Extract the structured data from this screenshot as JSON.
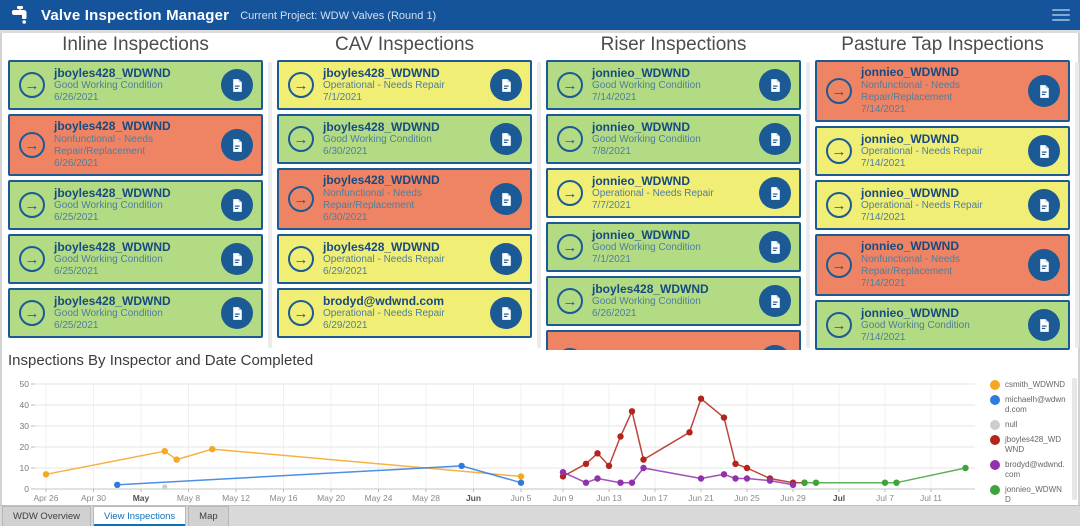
{
  "header": {
    "title": "Valve Inspection Manager",
    "subtitle": "Current Project: WDW Valves (Round 1)"
  },
  "icons": {
    "header_app_icon": "faucet",
    "header_menu_icon": "hamburger",
    "card_leading_icon": "arrow-right-circle",
    "card_leading_glyph": "→",
    "card_action_icon": "document"
  },
  "status_colors": {
    "good": "#B2DB84",
    "operational": "#F0EE74",
    "nonfunctional": "#EF8465"
  },
  "columns": [
    {
      "title": "Inline Inspections",
      "cards": [
        {
          "name": "jboyles428_WDWND",
          "status": "Good Working Condition",
          "date": "6/26/2021",
          "condition": "good"
        },
        {
          "name": "jboyles428_WDWND",
          "status": "Nonfunctional - Needs Repair/Replacement",
          "date": "6/26/2021",
          "condition": "nonfunctional",
          "tall": true
        },
        {
          "name": "jboyles428_WDWND",
          "status": "Good Working Condition",
          "date": "6/25/2021",
          "condition": "good"
        },
        {
          "name": "jboyles428_WDWND",
          "status": "Good Working Condition",
          "date": "6/25/2021",
          "condition": "good"
        },
        {
          "name": "jboyles428_WDWND",
          "status": "Good Working Condition",
          "date": "6/25/2021",
          "condition": "good"
        }
      ]
    },
    {
      "title": "CAV Inspections",
      "cards": [
        {
          "name": "jboyles428_WDWND",
          "status": "Operational - Needs Repair",
          "date": "7/1/2021",
          "condition": "operational"
        },
        {
          "name": "jboyles428_WDWND",
          "status": "Good Working Condition",
          "date": "6/30/2021",
          "condition": "good"
        },
        {
          "name": "jboyles428_WDWND",
          "status": "Nonfunctional - Needs Repair/Replacement",
          "date": "6/30/2021",
          "condition": "nonfunctional",
          "tall": true
        },
        {
          "name": "jboyles428_WDWND",
          "status": "Operational - Needs Repair",
          "date": "6/29/2021",
          "condition": "operational"
        },
        {
          "name": "brodyd@wdwnd.com",
          "status": "Operational - Needs Repair",
          "date": "6/29/2021",
          "condition": "operational"
        }
      ]
    },
    {
      "title": "Riser Inspections",
      "cards": [
        {
          "name": "jonnieo_WDWND",
          "status": "Good Working Condition",
          "date": "7/14/2021",
          "condition": "good"
        },
        {
          "name": "jonnieo_WDWND",
          "status": "Good Working Condition",
          "date": "7/8/2021",
          "condition": "good"
        },
        {
          "name": "jonnieo_WDWND",
          "status": "Operational - Needs Repair",
          "date": "7/7/2021",
          "condition": "operational"
        },
        {
          "name": "jonnieo_WDWND",
          "status": "Good Working Condition",
          "date": "7/1/2021",
          "condition": "good"
        },
        {
          "name": "jboyles428_WDWND",
          "status": "Good Working Condition",
          "date": "6/26/2021",
          "condition": "good"
        },
        {
          "name": "",
          "status": "",
          "date": "",
          "condition": "nonfunctional",
          "tall": true
        }
      ]
    },
    {
      "title": "Pasture Tap Inspections",
      "cards": [
        {
          "name": "jonnieo_WDWND",
          "status": "Nonfunctional - Needs Repair/Replacement",
          "date": "7/14/2021",
          "condition": "nonfunctional",
          "tall": true
        },
        {
          "name": "jonnieo_WDWND",
          "status": "Operational - Needs Repair",
          "date": "7/14/2021",
          "condition": "operational"
        },
        {
          "name": "jonnieo_WDWND",
          "status": "Operational - Needs Repair",
          "date": "7/14/2021",
          "condition": "operational"
        },
        {
          "name": "jonnieo_WDWND",
          "status": "Nonfunctional - Needs Repair/Replacement",
          "date": "7/14/2021",
          "condition": "nonfunctional",
          "tall": true
        },
        {
          "name": "jonnieo_WDWND",
          "status": "Good Working Condition",
          "date": "7/14/2021",
          "condition": "good"
        }
      ]
    }
  ],
  "chart_data": {
    "type": "line",
    "title": "Inspections By Inspector and Date Completed",
    "xlabel": "",
    "ylabel": "",
    "ylim": [
      0,
      50
    ],
    "yticks": [
      0,
      10,
      20,
      30,
      40,
      50
    ],
    "grid": true,
    "legend_position": "right",
    "x_unit": "days since Apr 26 2021",
    "segments": [
      {
        "day_range": [
          0,
          40
        ],
        "ticks": [
          {
            "day": 0,
            "label": "Apr 26"
          },
          {
            "day": 4,
            "label": "Apr 30"
          },
          {
            "day": 8,
            "label": "May",
            "bold": true
          },
          {
            "day": 12,
            "label": "May 8"
          },
          {
            "day": 16,
            "label": "May 12"
          },
          {
            "day": 20,
            "label": "May 16"
          },
          {
            "day": 24,
            "label": "May 20"
          },
          {
            "day": 28,
            "label": "May 24"
          },
          {
            "day": 32,
            "label": "May 28"
          },
          {
            "day": 36,
            "label": "Jun",
            "bold": true
          },
          {
            "day": 40,
            "label": "Jun 5"
          }
        ]
      },
      {
        "day_range": [
          44,
          80
        ],
        "ticks": [
          {
            "day": 44,
            "label": "Jun 9"
          },
          {
            "day": 48,
            "label": "Jun 13"
          },
          {
            "day": 52,
            "label": "Jun 17"
          },
          {
            "day": 56,
            "label": "Jun 21"
          },
          {
            "day": 60,
            "label": "Jun 25"
          },
          {
            "day": 64,
            "label": "Jun 29"
          },
          {
            "day": 68,
            "label": "Jul",
            "bold": true
          },
          {
            "day": 72,
            "label": "Jul 7"
          },
          {
            "day": 76,
            "label": "Jul 11"
          }
        ]
      }
    ],
    "series": [
      {
        "name": "csmith_WDWND",
        "color": "#F5A623",
        "points": [
          [
            0,
            7
          ],
          [
            10,
            18
          ],
          [
            11,
            14
          ],
          [
            14,
            19
          ],
          [
            40,
            6
          ]
        ]
      },
      {
        "name": "michaelh@wdwnd.com",
        "color": "#2E7BE0",
        "points": [
          [
            6,
            2
          ],
          [
            35,
            11
          ],
          [
            40,
            3
          ]
        ]
      },
      {
        "name": "null",
        "color": "#CDCDCD",
        "points": [
          [
            10,
            1
          ]
        ]
      },
      {
        "name": "jboyles428_WDWND",
        "color": "#B1251A",
        "points": [
          [
            44,
            6
          ],
          [
            46,
            12
          ],
          [
            47,
            17
          ],
          [
            48,
            11
          ],
          [
            49,
            25
          ],
          [
            50,
            37
          ],
          [
            51,
            14
          ],
          [
            55,
            27
          ],
          [
            56,
            43
          ],
          [
            58,
            34
          ],
          [
            59,
            12
          ],
          [
            60,
            10
          ],
          [
            62,
            5
          ],
          [
            64,
            3
          ],
          [
            65,
            3
          ]
        ]
      },
      {
        "name": "brodyd@wdwnd.com",
        "color": "#9231AC",
        "points": [
          [
            44,
            8
          ],
          [
            46,
            3
          ],
          [
            47,
            5
          ],
          [
            49,
            3
          ],
          [
            50,
            3
          ],
          [
            51,
            10
          ],
          [
            56,
            5
          ],
          [
            58,
            7
          ],
          [
            59,
            5
          ],
          [
            60,
            5
          ],
          [
            62,
            4
          ],
          [
            64,
            2
          ]
        ]
      },
      {
        "name": "jonnieo_WDWND",
        "color": "#3FA33C",
        "points": [
          [
            65,
            3
          ],
          [
            66,
            3
          ],
          [
            72,
            3
          ],
          [
            73,
            3
          ],
          [
            79,
            10
          ]
        ]
      }
    ]
  },
  "tabs": [
    {
      "label": "WDW Overview",
      "active": false
    },
    {
      "label": "View Inspections",
      "active": true
    },
    {
      "label": "Map",
      "active": false
    }
  ]
}
